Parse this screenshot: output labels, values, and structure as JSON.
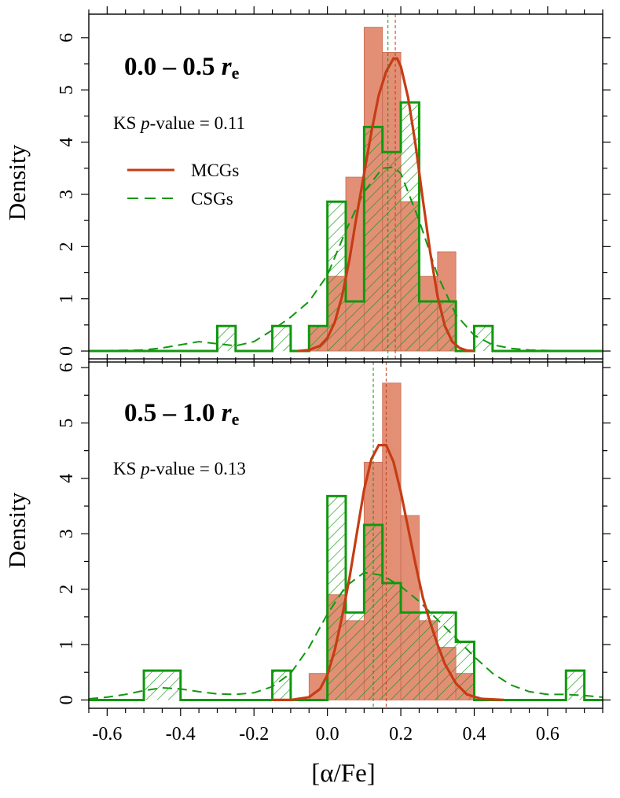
{
  "figure": {
    "colors": {
      "mcg": "#C63C14",
      "mcg_fill": "#E28F76",
      "csg": "#11980F"
    },
    "xlabel": "[α/Fe]",
    "legend": {
      "mcg_label": "MCGs",
      "csg_label": "CSGs"
    }
  },
  "chart_data": [
    {
      "type": "bar",
      "panel": "top",
      "title_prefix": "0.0 – 0.5 ",
      "title_var": "r",
      "title_sub": "e",
      "ks_prefix": "KS ",
      "ks_var": "p",
      "ks_suffix": "-value = 0.11",
      "ylabel": "Density",
      "xlim": [
        -0.65,
        0.75
      ],
      "ylim": [
        -0.15,
        6.45
      ],
      "xticks": [
        -0.6,
        -0.4,
        -0.2,
        0.0,
        0.2,
        0.4,
        0.6
      ],
      "yticks": [
        0,
        1,
        2,
        3,
        4,
        5,
        6
      ],
      "mcg_hist": {
        "bins": [
          [
            -0.05,
            0.0,
            0.48
          ],
          [
            0.0,
            0.05,
            1.43
          ],
          [
            0.05,
            0.1,
            3.33
          ],
          [
            0.1,
            0.15,
            6.2
          ],
          [
            0.15,
            0.2,
            5.72
          ],
          [
            0.2,
            0.25,
            2.86
          ],
          [
            0.25,
            0.3,
            1.43
          ],
          [
            0.3,
            0.35,
            1.9
          ]
        ]
      },
      "csg_hist": {
        "bins": [
          [
            -0.3,
            -0.25,
            0.48
          ],
          [
            -0.15,
            -0.1,
            0.48
          ],
          [
            -0.05,
            0.0,
            0.48
          ],
          [
            0.0,
            0.05,
            2.86
          ],
          [
            0.05,
            0.1,
            0.95
          ],
          [
            0.1,
            0.15,
            4.29
          ],
          [
            0.15,
            0.2,
            3.81
          ],
          [
            0.2,
            0.25,
            4.76
          ],
          [
            0.25,
            0.3,
            0.95
          ],
          [
            0.3,
            0.35,
            0.95
          ],
          [
            0.4,
            0.45,
            0.48
          ]
        ]
      },
      "mcg_kde": {
        "x": [
          -0.08,
          -0.05,
          -0.02,
          0.0,
          0.02,
          0.04,
          0.06,
          0.08,
          0.1,
          0.12,
          0.14,
          0.16,
          0.18,
          0.19,
          0.2,
          0.22,
          0.24,
          0.26,
          0.28,
          0.3,
          0.32,
          0.34,
          0.36,
          0.38,
          0.4
        ],
        "y": [
          0.0,
          0.02,
          0.1,
          0.25,
          0.55,
          1.05,
          1.75,
          2.6,
          3.4,
          4.2,
          4.9,
          5.35,
          5.6,
          5.6,
          5.45,
          4.85,
          3.95,
          2.9,
          1.9,
          1.05,
          0.48,
          0.18,
          0.06,
          0.01,
          0.0
        ]
      },
      "csg_kde": {
        "x": [
          -0.65,
          -0.5,
          -0.45,
          -0.4,
          -0.35,
          -0.3,
          -0.25,
          -0.2,
          -0.15,
          -0.1,
          -0.05,
          0.0,
          0.05,
          0.1,
          0.15,
          0.18,
          0.2,
          0.25,
          0.3,
          0.35,
          0.4,
          0.45,
          0.5,
          0.55,
          0.6,
          0.65,
          0.7,
          0.75
        ],
        "y": [
          0.0,
          0.02,
          0.06,
          0.12,
          0.18,
          0.14,
          0.1,
          0.18,
          0.4,
          0.65,
          0.95,
          1.45,
          2.3,
          3.05,
          3.5,
          3.52,
          3.4,
          2.5,
          1.45,
          0.7,
          0.3,
          0.12,
          0.05,
          0.02,
          0.01,
          0.0,
          0.0,
          0.0
        ]
      },
      "mcg_median": 0.185,
      "csg_median": 0.165
    },
    {
      "type": "bar",
      "panel": "bottom",
      "title_prefix": "0.5 – 1.0 ",
      "title_var": "r",
      "title_sub": "e",
      "ks_prefix": "KS ",
      "ks_var": "p",
      "ks_suffix": "-value = 0.13",
      "ylabel": "Density",
      "xlim": [
        -0.65,
        0.75
      ],
      "ylim": [
        -0.15,
        6.1
      ],
      "xticks": [
        -0.6,
        -0.4,
        -0.2,
        0.0,
        0.2,
        0.4,
        0.6
      ],
      "yticks": [
        0,
        1,
        2,
        3,
        4,
        5,
        6
      ],
      "xticklabels": [
        "-0.6",
        "-0.4",
        "-0.2",
        "0.0",
        "0.2",
        "0.4",
        "0.6"
      ],
      "mcg_hist": {
        "bins": [
          [
            -0.05,
            0.0,
            0.48
          ],
          [
            0.0,
            0.05,
            1.9
          ],
          [
            0.05,
            0.1,
            1.43
          ],
          [
            0.1,
            0.15,
            4.29
          ],
          [
            0.15,
            0.2,
            5.72
          ],
          [
            0.2,
            0.25,
            3.33
          ],
          [
            0.25,
            0.3,
            1.43
          ],
          [
            0.3,
            0.35,
            0.95
          ],
          [
            0.35,
            0.4,
            0.48
          ]
        ]
      },
      "csg_hist": {
        "bins": [
          [
            -0.5,
            -0.45,
            0.53
          ],
          [
            -0.45,
            -0.4,
            0.53
          ],
          [
            -0.15,
            -0.1,
            0.53
          ],
          [
            0.0,
            0.05,
            3.68
          ],
          [
            0.05,
            0.1,
            1.58
          ],
          [
            0.1,
            0.15,
            3.16
          ],
          [
            0.15,
            0.2,
            2.11
          ],
          [
            0.2,
            0.25,
            1.58
          ],
          [
            0.25,
            0.3,
            1.58
          ],
          [
            0.3,
            0.35,
            1.58
          ],
          [
            0.35,
            0.4,
            1.05
          ],
          [
            0.65,
            0.7,
            0.53
          ]
        ]
      },
      "mcg_kde": {
        "x": [
          -0.15,
          -0.1,
          -0.05,
          -0.02,
          0.0,
          0.02,
          0.04,
          0.06,
          0.08,
          0.1,
          0.12,
          0.14,
          0.16,
          0.18,
          0.2,
          0.22,
          0.24,
          0.26,
          0.28,
          0.3,
          0.32,
          0.35,
          0.38,
          0.42,
          0.48
        ],
        "y": [
          0.0,
          0.0,
          0.05,
          0.2,
          0.45,
          0.9,
          1.5,
          2.2,
          3.0,
          3.8,
          4.35,
          4.6,
          4.6,
          4.3,
          3.75,
          3.1,
          2.45,
          1.85,
          1.4,
          1.0,
          0.65,
          0.3,
          0.1,
          0.02,
          0.0
        ]
      },
      "csg_kde": {
        "x": [
          -0.65,
          -0.6,
          -0.55,
          -0.5,
          -0.45,
          -0.4,
          -0.35,
          -0.3,
          -0.25,
          -0.2,
          -0.15,
          -0.1,
          -0.05,
          0.0,
          0.05,
          0.1,
          0.15,
          0.2,
          0.25,
          0.3,
          0.35,
          0.4,
          0.45,
          0.5,
          0.55,
          0.6,
          0.65,
          0.7,
          0.75
        ],
        "y": [
          0.02,
          0.05,
          0.1,
          0.17,
          0.22,
          0.2,
          0.15,
          0.11,
          0.1,
          0.13,
          0.24,
          0.48,
          0.95,
          1.55,
          2.05,
          2.3,
          2.25,
          2.05,
          1.78,
          1.45,
          1.12,
          0.78,
          0.48,
          0.27,
          0.15,
          0.1,
          0.1,
          0.08,
          0.05
        ]
      },
      "mcg_median": 0.16,
      "csg_median": 0.125
    }
  ]
}
